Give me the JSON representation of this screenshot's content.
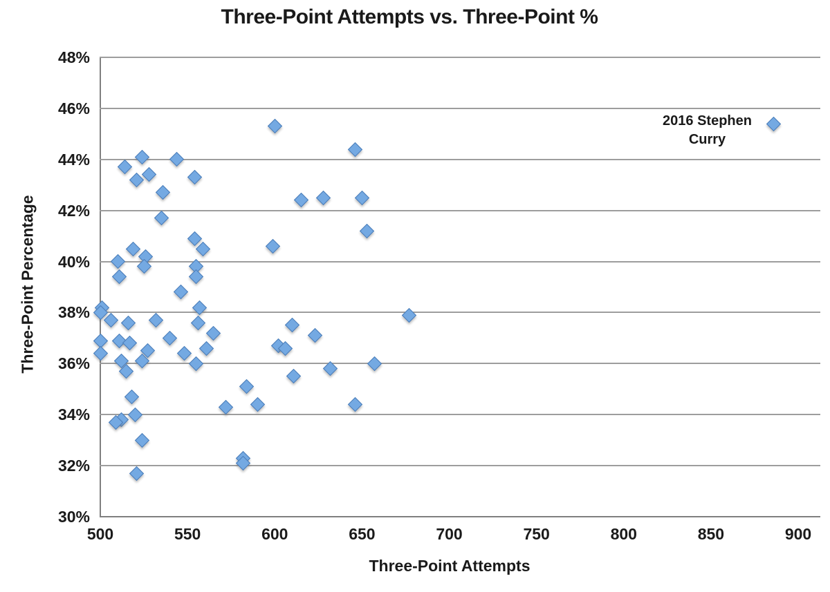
{
  "title": "Three-Point Attempts vs. Three-Point %",
  "chart_data": {
    "type": "scatter",
    "title": "Three-Point Attempts vs. Three-Point %",
    "xlabel": "Three-Point Attempts",
    "ylabel": "Three-Point Percentage",
    "xlim": [
      500,
      912
    ],
    "ylim": [
      30,
      48
    ],
    "x_ticks": [
      500,
      550,
      600,
      650,
      700,
      750,
      800,
      850,
      900
    ],
    "y_ticks_pct": [
      30,
      32,
      34,
      36,
      38,
      40,
      42,
      44,
      46,
      48
    ],
    "grid": "horizontal",
    "legend_position": "none",
    "marker": "diamond",
    "marker_fill": "#74a9e2",
    "marker_border": "#4a7cb8",
    "points": [
      [
        600,
        45.3
      ],
      [
        646,
        44.4
      ],
      [
        524,
        44.1
      ],
      [
        544,
        44.0
      ],
      [
        514,
        43.7
      ],
      [
        528,
        43.4
      ],
      [
        554,
        43.3
      ],
      [
        521,
        43.2
      ],
      [
        536,
        42.7
      ],
      [
        615,
        42.4
      ],
      [
        628,
        42.5
      ],
      [
        650,
        42.5
      ],
      [
        535,
        41.7
      ],
      [
        653,
        41.2
      ],
      [
        554,
        40.9
      ],
      [
        599,
        40.6
      ],
      [
        559,
        40.5
      ],
      [
        519,
        40.5
      ],
      [
        526,
        40.2
      ],
      [
        510,
        40.0
      ],
      [
        525,
        39.8
      ],
      [
        555,
        39.8
      ],
      [
        555,
        39.4
      ],
      [
        511,
        39.4
      ],
      [
        546,
        38.8
      ],
      [
        557,
        38.2
      ],
      [
        501,
        38.2
      ],
      [
        500,
        38.0
      ],
      [
        677,
        37.9
      ],
      [
        506,
        37.7
      ],
      [
        532,
        37.7
      ],
      [
        516,
        37.6
      ],
      [
        556,
        37.6
      ],
      [
        610,
        37.5
      ],
      [
        565,
        37.2
      ],
      [
        623,
        37.1
      ],
      [
        540,
        37.0
      ],
      [
        511,
        36.9
      ],
      [
        500,
        36.9
      ],
      [
        517,
        36.8
      ],
      [
        602,
        36.7
      ],
      [
        606,
        36.6
      ],
      [
        561,
        36.6
      ],
      [
        527,
        36.5
      ],
      [
        548,
        36.4
      ],
      [
        500,
        36.4
      ],
      [
        524,
        36.1
      ],
      [
        512,
        36.1
      ],
      [
        555,
        36.0
      ],
      [
        657,
        36.0
      ],
      [
        632,
        35.8
      ],
      [
        515,
        35.7
      ],
      [
        611,
        35.5
      ],
      [
        584,
        35.1
      ],
      [
        518,
        34.7
      ],
      [
        590,
        34.4
      ],
      [
        646,
        34.4
      ],
      [
        572,
        34.3
      ],
      [
        520,
        34.0
      ],
      [
        512,
        33.8
      ],
      [
        509,
        33.7
      ],
      [
        524,
        33.0
      ],
      [
        582,
        32.3
      ],
      [
        582,
        32.1
      ],
      [
        521,
        31.7
      ]
    ],
    "annotation": {
      "label": "2016 Stephen Curry",
      "x": 886,
      "y": 45.4
    }
  }
}
